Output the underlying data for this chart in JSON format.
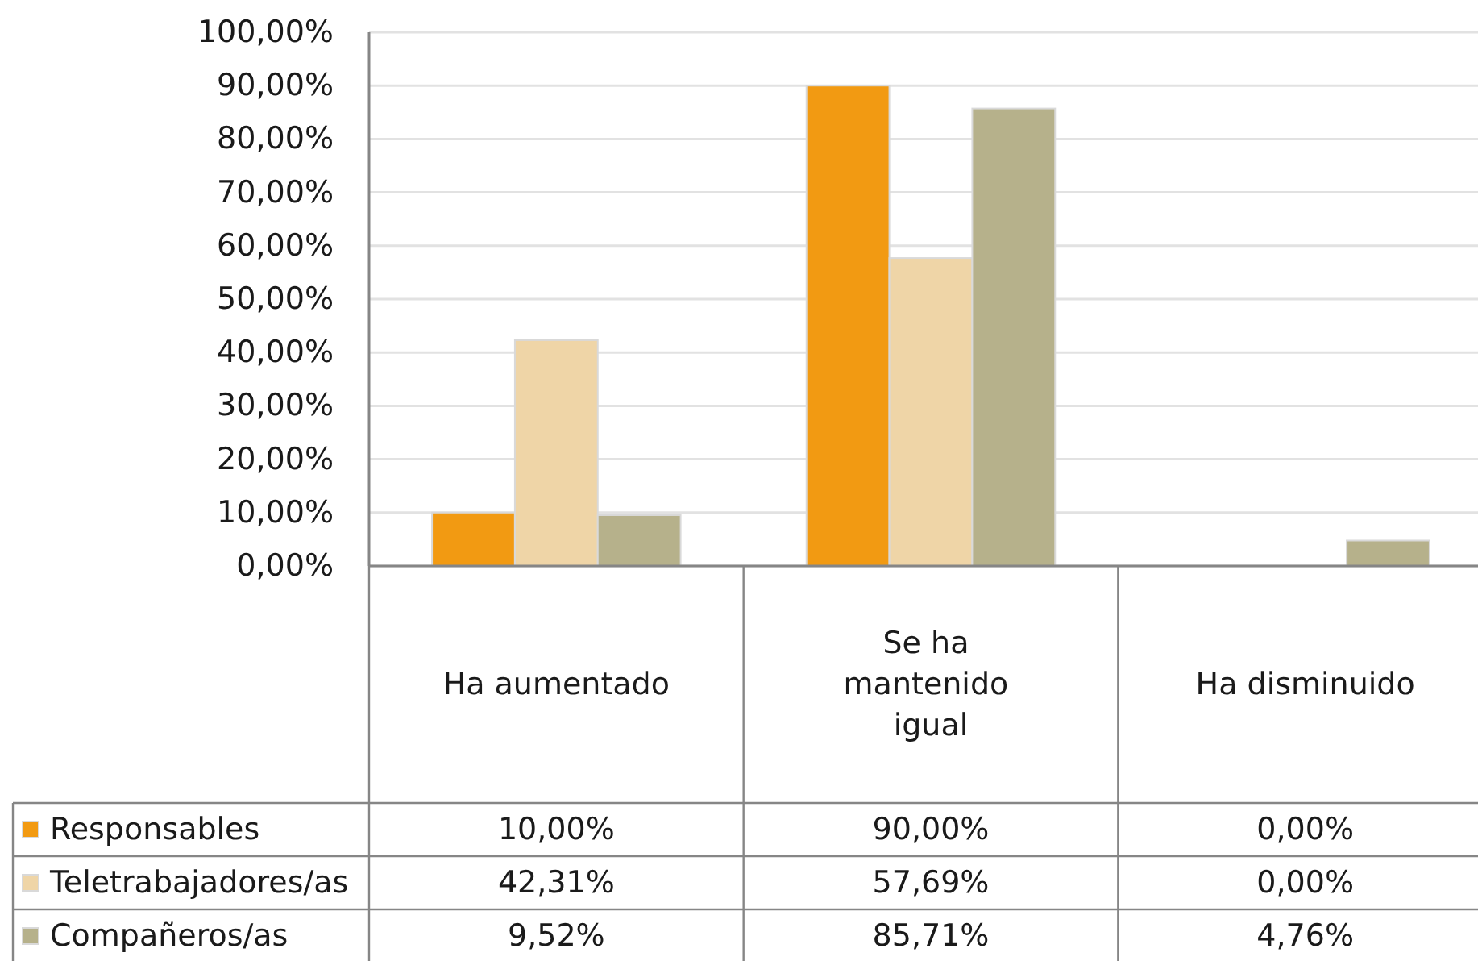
{
  "chart_data": {
    "type": "bar",
    "categories": [
      "Ha aumentado",
      "Se ha mantenido igual",
      "Ha disminuido"
    ],
    "series": [
      {
        "name": "Responsables",
        "color": "#f29a12",
        "values": [
          10,
          90,
          0
        ],
        "value_labels": [
          "10,00%",
          "90,00%",
          "0,00%"
        ]
      },
      {
        "name": "Teletrabajadores/as",
        "color": "#efd5a7",
        "values": [
          42.31,
          57.69,
          0
        ],
        "value_labels": [
          "42,31%",
          "57,69%",
          "0,00%"
        ]
      },
      {
        "name": "Compañeros/as",
        "color": "#b6b18b",
        "values": [
          9.52,
          85.71,
          4.76
        ],
        "value_labels": [
          "9,52%",
          "85,71%",
          "4,76%"
        ]
      }
    ],
    "ylim": [
      0,
      100
    ],
    "yticks": [
      {
        "value": 0,
        "label": "0,00%"
      },
      {
        "value": 10,
        "label": "10,00%"
      },
      {
        "value": 20,
        "label": "20,00%"
      },
      {
        "value": 30,
        "label": "30,00%"
      },
      {
        "value": 40,
        "label": "40,00%"
      },
      {
        "value": 50,
        "label": "50,00%"
      },
      {
        "value": 60,
        "label": "60,00%"
      },
      {
        "value": 70,
        "label": "70,00%"
      },
      {
        "value": 80,
        "label": "80,00%"
      },
      {
        "value": 90,
        "label": "90,00%"
      },
      {
        "value": 100,
        "label": "100,00%"
      }
    ],
    "grid": "y",
    "legend": "bottom left"
  }
}
